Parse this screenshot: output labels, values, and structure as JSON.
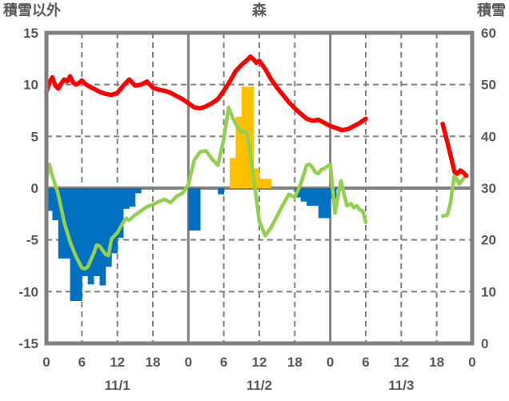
{
  "page": {
    "background": "#FFFFFF"
  },
  "chart_data": {
    "type": "bar+line combo, hourly weather chart",
    "title_left": "積雪以外",
    "title_center": "森",
    "title_right": "積雪",
    "colors": {
      "frame": "#808080",
      "gridline": "#808080",
      "zero_line": "#808080",
      "tick_text": "#595959",
      "bar_negative": "#0070C0",
      "bar_positive": "#FFC000",
      "line_red": "#FF0000",
      "line_green": "#92D050"
    },
    "left_axis": {
      "max": 15,
      "min": -15,
      "step": 5,
      "ticks": [
        15,
        10,
        5,
        0,
        -5,
        -10,
        -15
      ]
    },
    "right_axis": {
      "max": 60,
      "min": 0,
      "step": 10,
      "ticks": [
        60,
        50,
        40,
        30,
        20,
        10,
        0
      ]
    },
    "x_axis": {
      "total_hours": 72,
      "tick_step_hours": 6,
      "tick_labels": [
        "0",
        "6",
        "12",
        "18",
        "0",
        "6",
        "12",
        "18",
        "0",
        "6",
        "12",
        "18",
        "0"
      ],
      "date_labels": [
        {
          "label": "11/1",
          "hour": 12
        },
        {
          "label": "11/2",
          "hour": 36
        },
        {
          "label": "11/3",
          "hour": 60
        }
      ]
    },
    "grid": {
      "h_dashed_values": [
        10,
        5,
        -5,
        -10
      ],
      "v_dashed_hours": [
        6,
        12,
        18,
        30,
        36,
        42,
        54,
        60,
        66
      ],
      "v_solid_hours": [
        24,
        48
      ],
      "zero_line_value": 0
    },
    "bars": {
      "name": "hourly-bars",
      "bar_width_hours": 1,
      "values": [
        [
          0,
          -2.2
        ],
        [
          1,
          -3.1
        ],
        [
          2,
          -6.8
        ],
        [
          3,
          -6.8
        ],
        [
          4,
          -10.9
        ],
        [
          5,
          -10.9
        ],
        [
          6,
          -8.5
        ],
        [
          7,
          -9.3
        ],
        [
          8,
          -8.5
        ],
        [
          9,
          -9.4
        ],
        [
          10,
          -7.6
        ],
        [
          11,
          -6.3
        ],
        [
          12,
          -4.8
        ],
        [
          13,
          -2.0
        ],
        [
          14,
          -1.8
        ],
        [
          15,
          -0.5
        ],
        [
          24,
          -4.1
        ],
        [
          25,
          -4.1
        ],
        [
          29,
          -0.6
        ],
        [
          31,
          2.9
        ],
        [
          32,
          6.9
        ],
        [
          33,
          9.8
        ],
        [
          34,
          9.8
        ],
        [
          35,
          1.9
        ],
        [
          36,
          0.9
        ],
        [
          37,
          0.9
        ],
        [
          42,
          -0.9
        ],
        [
          43,
          -1.3
        ],
        [
          44,
          -1.7
        ],
        [
          45,
          -1.7
        ],
        [
          46,
          -2.9
        ],
        [
          47,
          -2.9
        ],
        [
          48,
          -1.0
        ]
      ]
    },
    "lines": [
      {
        "name": "green-line",
        "color": "#92D050",
        "stroke_width": 4.5,
        "segments": [
          [
            [
              0,
              0.8
            ],
            [
              0.5,
              2.3
            ],
            [
              1,
              1.2
            ],
            [
              2,
              -0.6
            ],
            [
              3,
              -3.3
            ],
            [
              4,
              -5.2
            ],
            [
              5,
              -6.6
            ],
            [
              6,
              -7.7
            ],
            [
              6.5,
              -7.8
            ],
            [
              7,
              -7.6
            ],
            [
              8,
              -6.3
            ],
            [
              8.5,
              -5.5
            ],
            [
              9,
              -5.6
            ],
            [
              10,
              -6.4
            ],
            [
              10.5,
              -6.5
            ],
            [
              11,
              -4.9
            ],
            [
              12,
              -4.3
            ],
            [
              13,
              -3.3
            ],
            [
              13.5,
              -2.9
            ],
            [
              14,
              -3.1
            ],
            [
              15,
              -2.6
            ],
            [
              16,
              -2.2
            ],
            [
              17,
              -1.8
            ],
            [
              18,
              -1.6
            ],
            [
              19,
              -1.3
            ],
            [
              20,
              -1.1
            ],
            [
              21,
              -1.4
            ],
            [
              22,
              -0.8
            ],
            [
              23,
              -0.5
            ],
            [
              24,
              0.3
            ],
            [
              25,
              2.7
            ],
            [
              26,
              3.5
            ],
            [
              27,
              3.6
            ],
            [
              28,
              2.8
            ],
            [
              29,
              2.2
            ],
            [
              30,
              4.8
            ],
            [
              30.8,
              7.8
            ],
            [
              31.5,
              6.8
            ],
            [
              32,
              6.2
            ],
            [
              33,
              5.4
            ],
            [
              33.5,
              5.5
            ],
            [
              34,
              5.2
            ],
            [
              35,
              1.2
            ],
            [
              36,
              -3.2
            ],
            [
              37,
              -4.6
            ],
            [
              38,
              -3.8
            ],
            [
              39,
              -2.7
            ],
            [
              40,
              -1.6
            ],
            [
              41,
              -0.6
            ],
            [
              42,
              -0.9
            ],
            [
              43,
              0.4
            ],
            [
              44,
              2.2
            ],
            [
              44.5,
              2.3
            ],
            [
              45,
              2.0
            ],
            [
              45.5,
              1.5
            ],
            [
              46,
              1.4
            ],
            [
              46.5,
              1.8
            ],
            [
              47,
              1.9
            ],
            [
              48,
              2.3
            ],
            [
              48.8,
              -2.4
            ],
            [
              49.8,
              0.7
            ],
            [
              50.8,
              -1.7
            ],
            [
              51.5,
              -1.5
            ],
            [
              52,
              -1.9
            ],
            [
              52.5,
              -1.7
            ],
            [
              53,
              -2.1
            ],
            [
              53.5,
              -2.2
            ],
            [
              54,
              -3.3
            ]
          ],
          [
            [
              67,
              -2.7
            ],
            [
              67.8,
              -2.6
            ],
            [
              68.3,
              -1.5
            ],
            [
              69,
              1.3
            ],
            [
              69.8,
              0.4
            ],
            [
              70.5,
              0.9
            ],
            [
              71,
              1.3
            ]
          ]
        ]
      },
      {
        "name": "red-line",
        "color": "#FF0000",
        "stroke_width": 5.5,
        "segments": [
          [
            [
              0,
              9.3
            ],
            [
              0.5,
              10.2
            ],
            [
              1,
              10.7
            ],
            [
              1.5,
              9.9
            ],
            [
              2,
              9.6
            ],
            [
              2.5,
              10.1
            ],
            [
              3,
              10.5
            ],
            [
              3.5,
              10.3
            ],
            [
              4,
              10.8
            ],
            [
              4.5,
              10.2
            ],
            [
              5,
              10.0
            ],
            [
              5.5,
              10.15
            ],
            [
              6,
              10.4
            ],
            [
              6.5,
              10.1
            ],
            [
              7,
              9.9
            ],
            [
              8,
              9.6
            ],
            [
              9,
              9.3
            ],
            [
              10,
              9.1
            ],
            [
              11,
              9.0
            ],
            [
              12,
              9.2
            ],
            [
              13,
              9.9
            ],
            [
              14,
              10.5
            ],
            [
              15,
              9.9
            ],
            [
              16,
              10.0
            ],
            [
              17,
              10.3
            ],
            [
              18,
              9.7
            ],
            [
              19,
              9.5
            ],
            [
              20,
              9.4
            ],
            [
              21,
              9.2
            ],
            [
              22,
              8.9
            ],
            [
              23,
              8.6
            ],
            [
              24,
              8.2
            ],
            [
              25,
              7.8
            ],
            [
              26,
              7.7
            ],
            [
              27,
              7.9
            ],
            [
              28,
              8.2
            ],
            [
              29,
              8.6
            ],
            [
              30,
              9.4
            ],
            [
              31,
              10.3
            ],
            [
              32,
              11.3
            ],
            [
              33,
              11.9
            ],
            [
              34,
              12.4
            ],
            [
              34.5,
              12.7
            ],
            [
              35,
              12.45
            ],
            [
              35.5,
              12.1
            ],
            [
              36,
              12.3
            ],
            [
              37,
              11.5
            ],
            [
              38,
              10.5
            ],
            [
              39,
              9.7
            ],
            [
              40,
              9.0
            ],
            [
              41,
              8.3
            ],
            [
              42,
              7.7
            ],
            [
              43,
              7.2
            ],
            [
              44,
              6.7
            ],
            [
              45,
              6.5
            ],
            [
              46,
              6.6
            ],
            [
              47,
              6.3
            ],
            [
              48,
              6.0
            ],
            [
              49,
              5.8
            ],
            [
              50,
              5.6
            ],
            [
              51,
              5.7
            ],
            [
              52,
              6.0
            ],
            [
              53,
              6.3
            ],
            [
              54,
              6.7
            ]
          ],
          [
            [
              67,
              6.2
            ],
            [
              68,
              4.0
            ],
            [
              69,
              1.6
            ],
            [
              69.5,
              1.4
            ],
            [
              70,
              1.7
            ],
            [
              70.5,
              1.5
            ],
            [
              71,
              1.2
            ]
          ]
        ]
      }
    ]
  }
}
